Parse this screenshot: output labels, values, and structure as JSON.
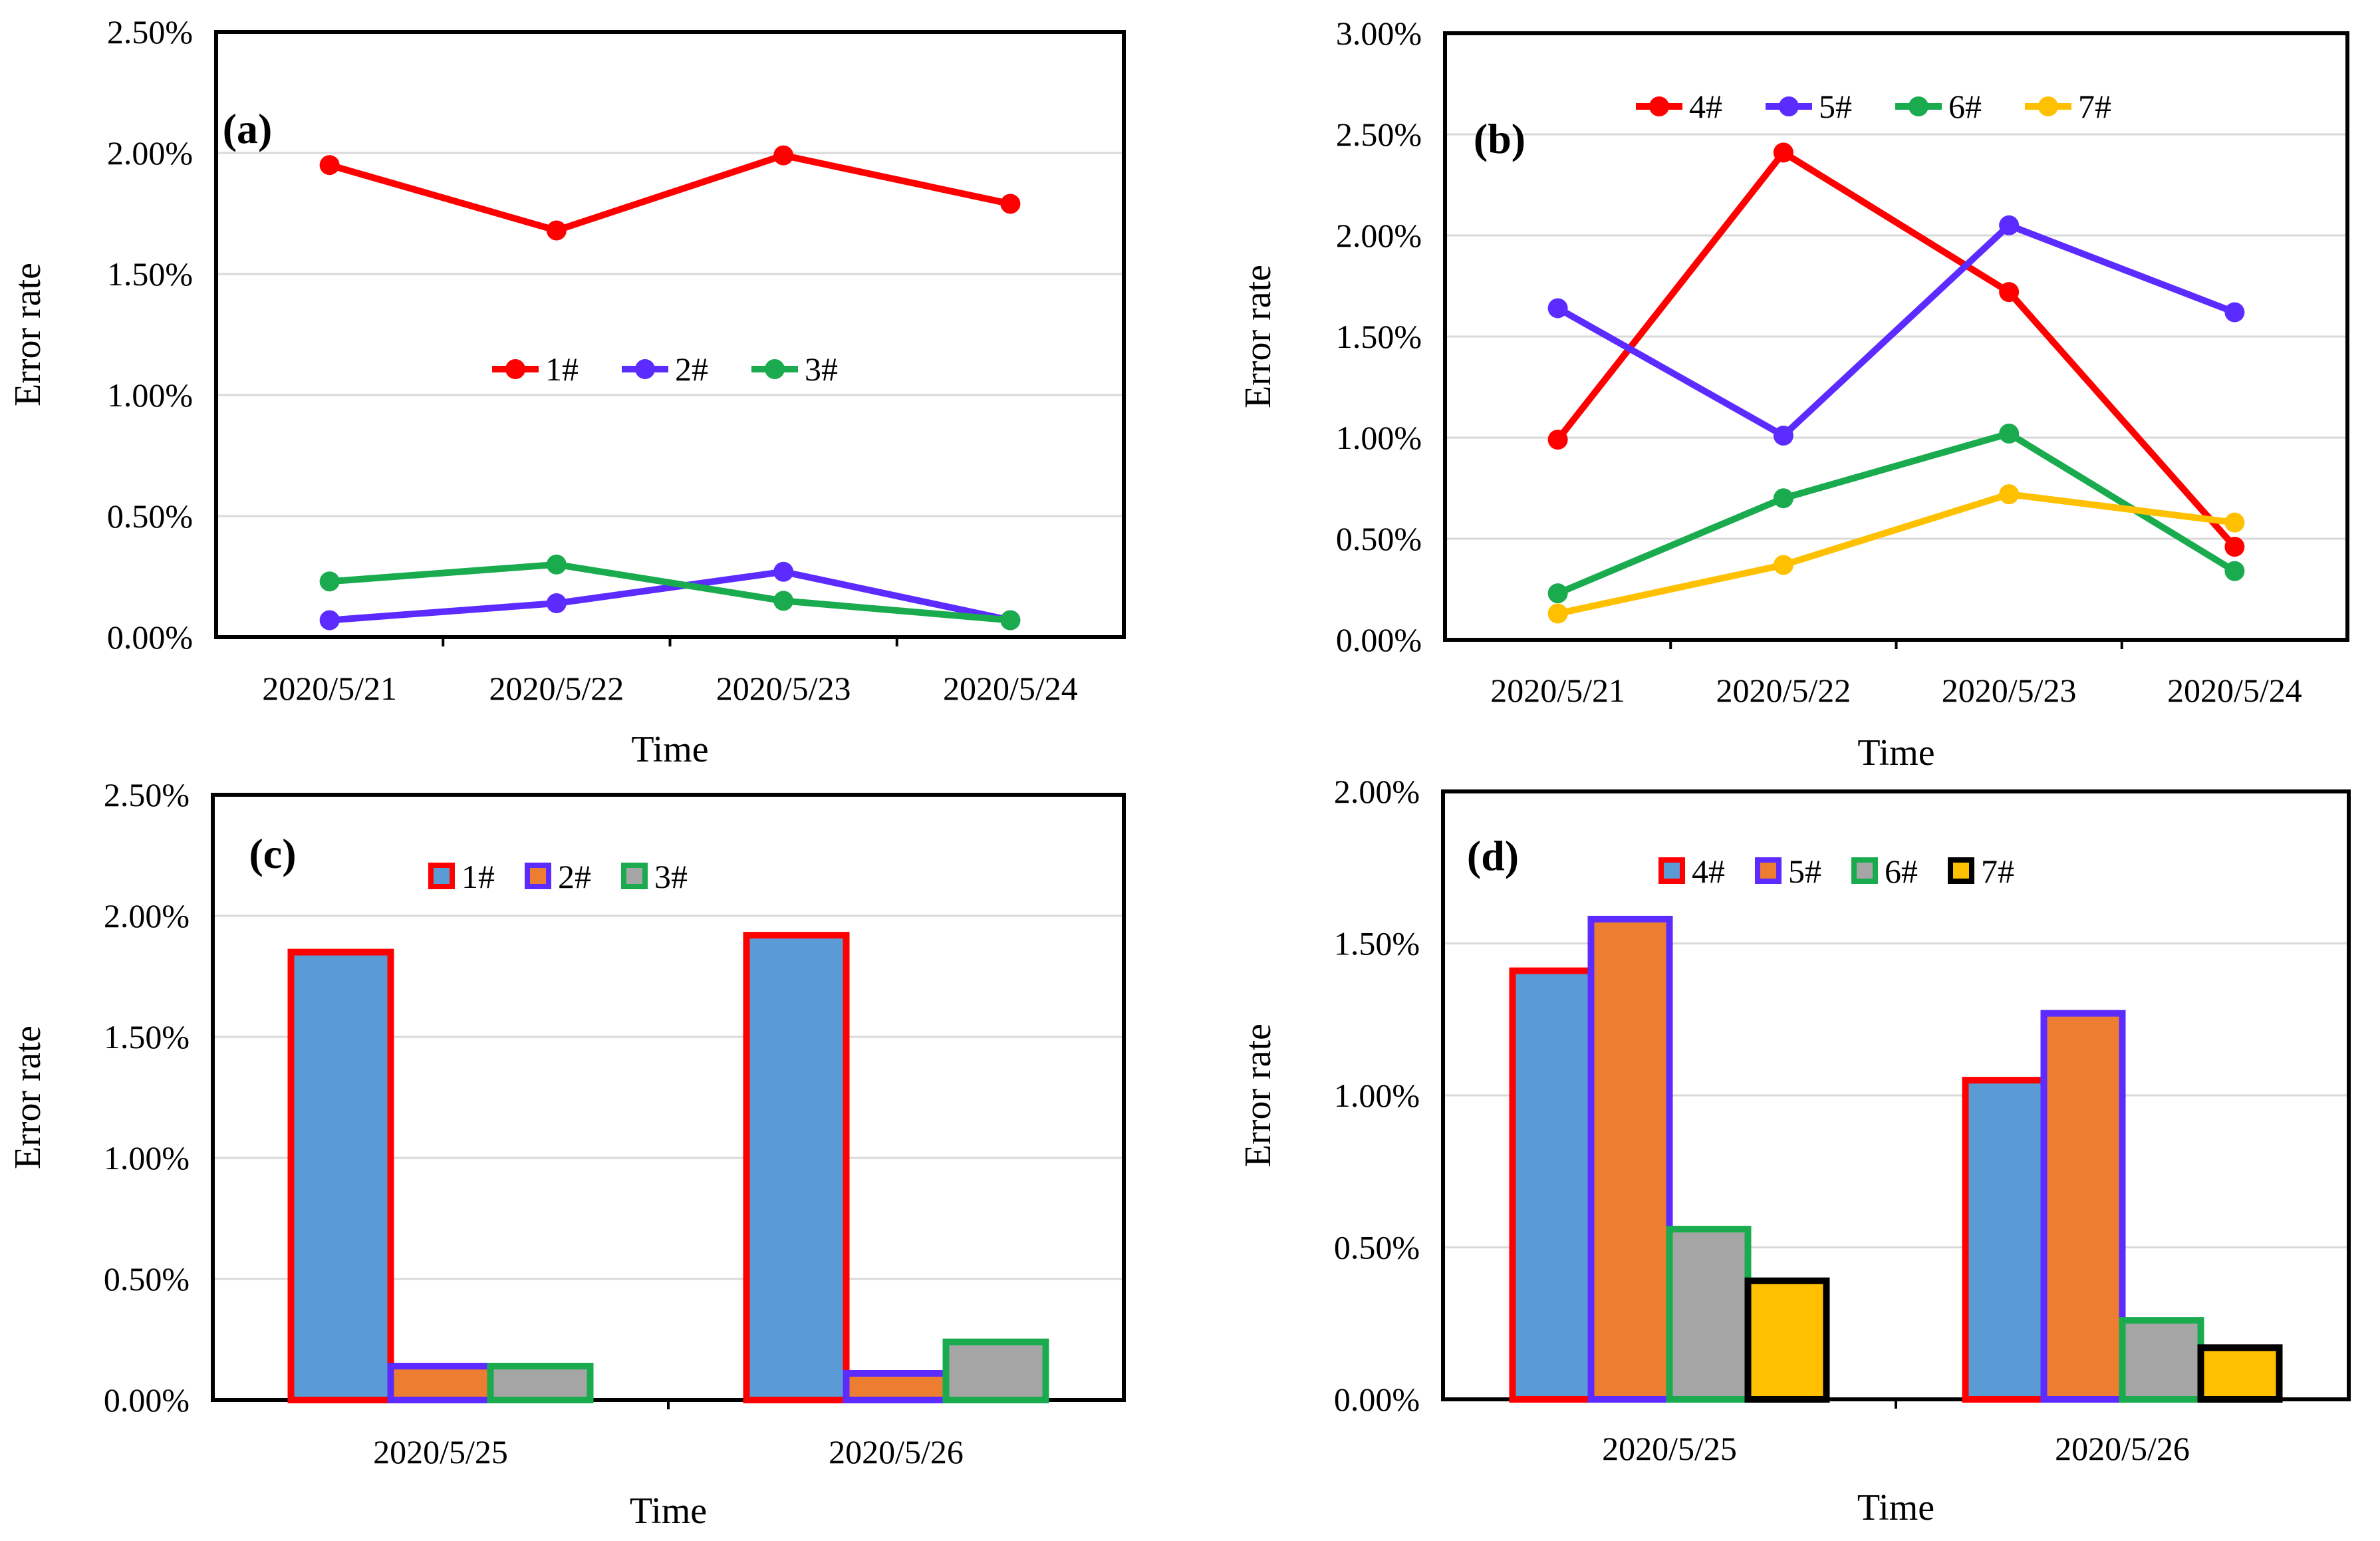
{
  "chart_data": [
    {
      "panel": "(a)",
      "type": "line",
      "categories": [
        "2020/5/21",
        "2020/5/22",
        "2020/5/23",
        "2020/5/24"
      ],
      "series": [
        {
          "name": "1#",
          "color": "#ff0000",
          "values": [
            1.95,
            1.68,
            1.99,
            1.79
          ]
        },
        {
          "name": "2#",
          "color": "#5b2bff",
          "values": [
            0.07,
            0.14,
            0.27,
            0.07
          ]
        },
        {
          "name": "3#",
          "color": "#1aab4f",
          "values": [
            0.23,
            0.3,
            0.15,
            0.07
          ]
        }
      ],
      "xlabel": "Time",
      "ylabel": "Error rate",
      "ylim": [
        0,
        2.5
      ],
      "yticks": [
        "0.00%",
        "0.50%",
        "1.00%",
        "1.50%",
        "2.00%",
        "2.50%"
      ],
      "grid": true,
      "legend_position": "center"
    },
    {
      "panel": "(b)",
      "type": "line",
      "categories": [
        "2020/5/21",
        "2020/5/22",
        "2020/5/23",
        "2020/5/24"
      ],
      "series": [
        {
          "name": "4#",
          "color": "#ff0000",
          "values": [
            0.99,
            2.41,
            1.72,
            0.46
          ]
        },
        {
          "name": "5#",
          "color": "#5b2bff",
          "values": [
            1.64,
            1.01,
            2.05,
            1.62
          ]
        },
        {
          "name": "6#",
          "color": "#1aab4f",
          "values": [
            0.23,
            0.7,
            1.02,
            0.34
          ]
        },
        {
          "name": "7#",
          "color": "#ffc000",
          "values": [
            0.13,
            0.37,
            0.72,
            0.58
          ]
        }
      ],
      "xlabel": "Time",
      "ylabel": "Error rate",
      "ylim": [
        0,
        3.0
      ],
      "yticks": [
        "0.00%",
        "0.50%",
        "1.00%",
        "1.50%",
        "2.00%",
        "2.50%",
        "3.00%"
      ],
      "grid": true,
      "legend_position": "top"
    },
    {
      "panel": "(c)",
      "type": "bar",
      "categories": [
        "2020/5/25",
        "2020/5/26"
      ],
      "series": [
        {
          "name": "1#",
          "fill": "#5b9bd5",
          "stroke": "#ff0000",
          "values": [
            1.85,
            1.92
          ]
        },
        {
          "name": "2#",
          "fill": "#ed7d31",
          "stroke": "#5b2bff",
          "values": [
            0.14,
            0.11
          ]
        },
        {
          "name": "3#",
          "fill": "#a5a5a5",
          "stroke": "#1aab4f",
          "values": [
            0.14,
            0.24
          ]
        }
      ],
      "xlabel": "Time",
      "ylabel": "Error rate",
      "ylim": [
        0,
        2.5
      ],
      "yticks": [
        "0.00%",
        "0.50%",
        "1.00%",
        "1.50%",
        "2.00%",
        "2.50%"
      ],
      "grid": true,
      "legend_position": "top"
    },
    {
      "panel": "(d)",
      "type": "bar",
      "categories": [
        "2020/5/25",
        "2020/5/26"
      ],
      "series": [
        {
          "name": "4#",
          "fill": "#5b9bd5",
          "stroke": "#ff0000",
          "values": [
            1.41,
            1.05
          ]
        },
        {
          "name": "5#",
          "fill": "#ed7d31",
          "stroke": "#5b2bff",
          "values": [
            1.58,
            1.27
          ]
        },
        {
          "name": "6#",
          "fill": "#a5a5a5",
          "stroke": "#1aab4f",
          "values": [
            0.56,
            0.26
          ]
        },
        {
          "name": "7#",
          "fill": "#ffc000",
          "stroke": "#000000",
          "values": [
            0.39,
            0.17
          ]
        }
      ],
      "xlabel": "Time",
      "ylabel": "Error rate",
      "ylim": [
        0,
        2.0
      ],
      "yticks": [
        "0.00%",
        "0.50%",
        "1.00%",
        "1.50%",
        "2.00%"
      ],
      "grid": true,
      "legend_position": "top"
    }
  ]
}
